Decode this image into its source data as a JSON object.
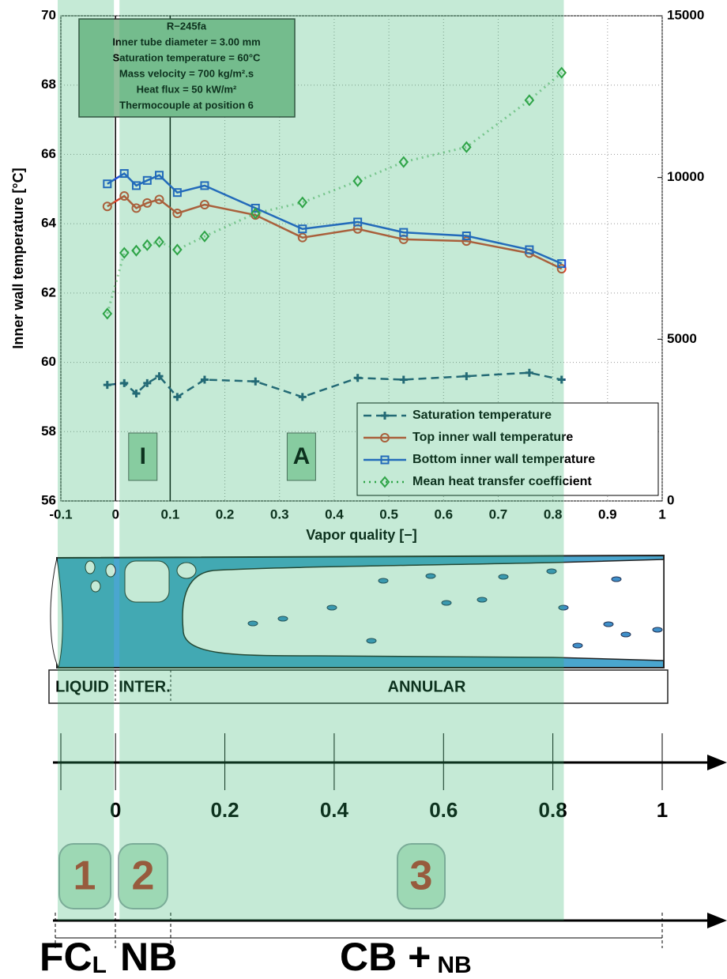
{
  "chart_data": {
    "type": "line",
    "xlabel": "Vapor quality [−]",
    "ylabel": "Inner wall temperature [°C]",
    "xlim": [
      -0.1,
      1
    ],
    "xticks": [
      -0.1,
      0,
      0.1,
      0.2,
      0.3,
      0.4,
      0.5,
      0.6,
      0.7,
      0.8,
      0.9,
      1
    ],
    "ylim": [
      56,
      70
    ],
    "yticks": [
      56,
      58,
      60,
      62,
      64,
      66,
      68,
      70
    ],
    "y2lim": [
      0,
      15000
    ],
    "y2ticks": [
      0,
      5000,
      10000,
      15000
    ],
    "highlight": [
      -0.1,
      0.82
    ],
    "regime_lines": [
      0,
      0.1
    ],
    "regime_labels": [
      "I",
      "A"
    ],
    "annotation": [
      "R−245fa",
      "Inner tube diameter = 3.00 mm",
      "Saturation temperature = 60°C",
      "Mass velocity = 700 kg/m².s",
      "Heat flux = 50 kW/m²",
      "Thermocouple at position 6"
    ],
    "legend": "lower right",
    "x": [
      -0.015,
      0.016,
      0.038,
      0.058,
      0.08,
      0.113,
      0.163,
      0.256,
      0.342,
      0.443,
      0.527,
      0.642,
      0.757,
      0.816
    ],
    "series": [
      {
        "name": "Saturation temperature",
        "color": "#1f4e79",
        "marker": "plus",
        "dash": "dashed",
        "values": [
          59.35,
          59.4,
          59.1,
          59.4,
          59.6,
          59.0,
          59.5,
          59.45,
          59.0,
          59.55,
          59.5,
          59.6,
          59.7,
          59.5
        ]
      },
      {
        "name": "Top inner wall temperature",
        "color": "#d9412a",
        "marker": "circle",
        "dash": "solid",
        "values": [
          64.5,
          64.8,
          64.45,
          64.6,
          64.7,
          64.3,
          64.55,
          64.25,
          63.6,
          63.85,
          63.55,
          63.5,
          63.15,
          62.7
        ]
      },
      {
        "name": "Bottom inner wall temperature",
        "color": "#1f4fd8",
        "marker": "square",
        "dash": "solid",
        "values": [
          65.15,
          65.45,
          65.1,
          65.25,
          65.4,
          64.9,
          65.1,
          64.45,
          63.85,
          64.05,
          63.75,
          63.65,
          63.25,
          62.85
        ]
      },
      {
        "name": "Mean heat transfer coefficient",
        "color": "#2e9e3a",
        "marker": "diamond",
        "dash": "dotted",
        "axis": "y2",
        "values": [
          5790,
          7670,
          7740,
          7910,
          8010,
          7770,
          8180,
          8890,
          9230,
          9890,
          10480,
          10940,
          12390,
          13240
        ]
      }
    ]
  },
  "diagram": {
    "flow_patterns": [
      "LIQUID",
      "INTER.",
      "ANNULAR"
    ],
    "quality_ticks": [
      0,
      0.2,
      0.4,
      0.6,
      0.8,
      1
    ],
    "zones": [
      "1",
      "2",
      "3"
    ],
    "mechanisms": [
      {
        "main": "FC",
        "sub": "L"
      },
      {
        "main": "NB"
      },
      {
        "main": "CB +",
        "sub": "NB"
      }
    ]
  }
}
